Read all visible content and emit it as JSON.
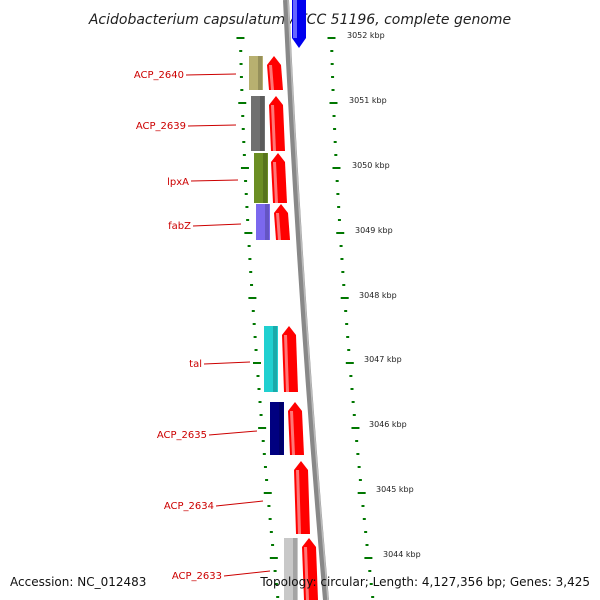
{
  "title": "Acidobacterium capsulatum ATCC 51196, complete genome",
  "accession": "Accession: NC_012483",
  "topology": "Topology: circular; Length: 4,127,356 bp; Genes: 3,425",
  "scale_labels": [
    "3052 kbp",
    "3051 kbp",
    "3050 kbp",
    "3049 kbp",
    "3048 kbp",
    "3047 kbp",
    "3046 kbp",
    "3045 kbp",
    "3044 kbp"
  ],
  "genes": [
    {
      "name": "ACP_2640",
      "color": "#b8b070"
    },
    {
      "name": "ACP_2639",
      "color": "#707070"
    },
    {
      "name": "lpxA",
      "color": "#6b8e23"
    },
    {
      "name": "fabZ",
      "color": "#7b68ee"
    },
    {
      "name": "tal",
      "color": "#20d0d0"
    },
    {
      "name": "ACP_2635",
      "color": "#000080"
    },
    {
      "name": "ACP_2634",
      "color": "#ffffff"
    },
    {
      "name": "ACP_2633",
      "color": "#c8c8c8"
    }
  ],
  "colors": {
    "backbone": "#888888",
    "arrow": "#ff0000",
    "arrow_top": "#0000ff",
    "tick": "#007700",
    "label": "#cc0000"
  }
}
